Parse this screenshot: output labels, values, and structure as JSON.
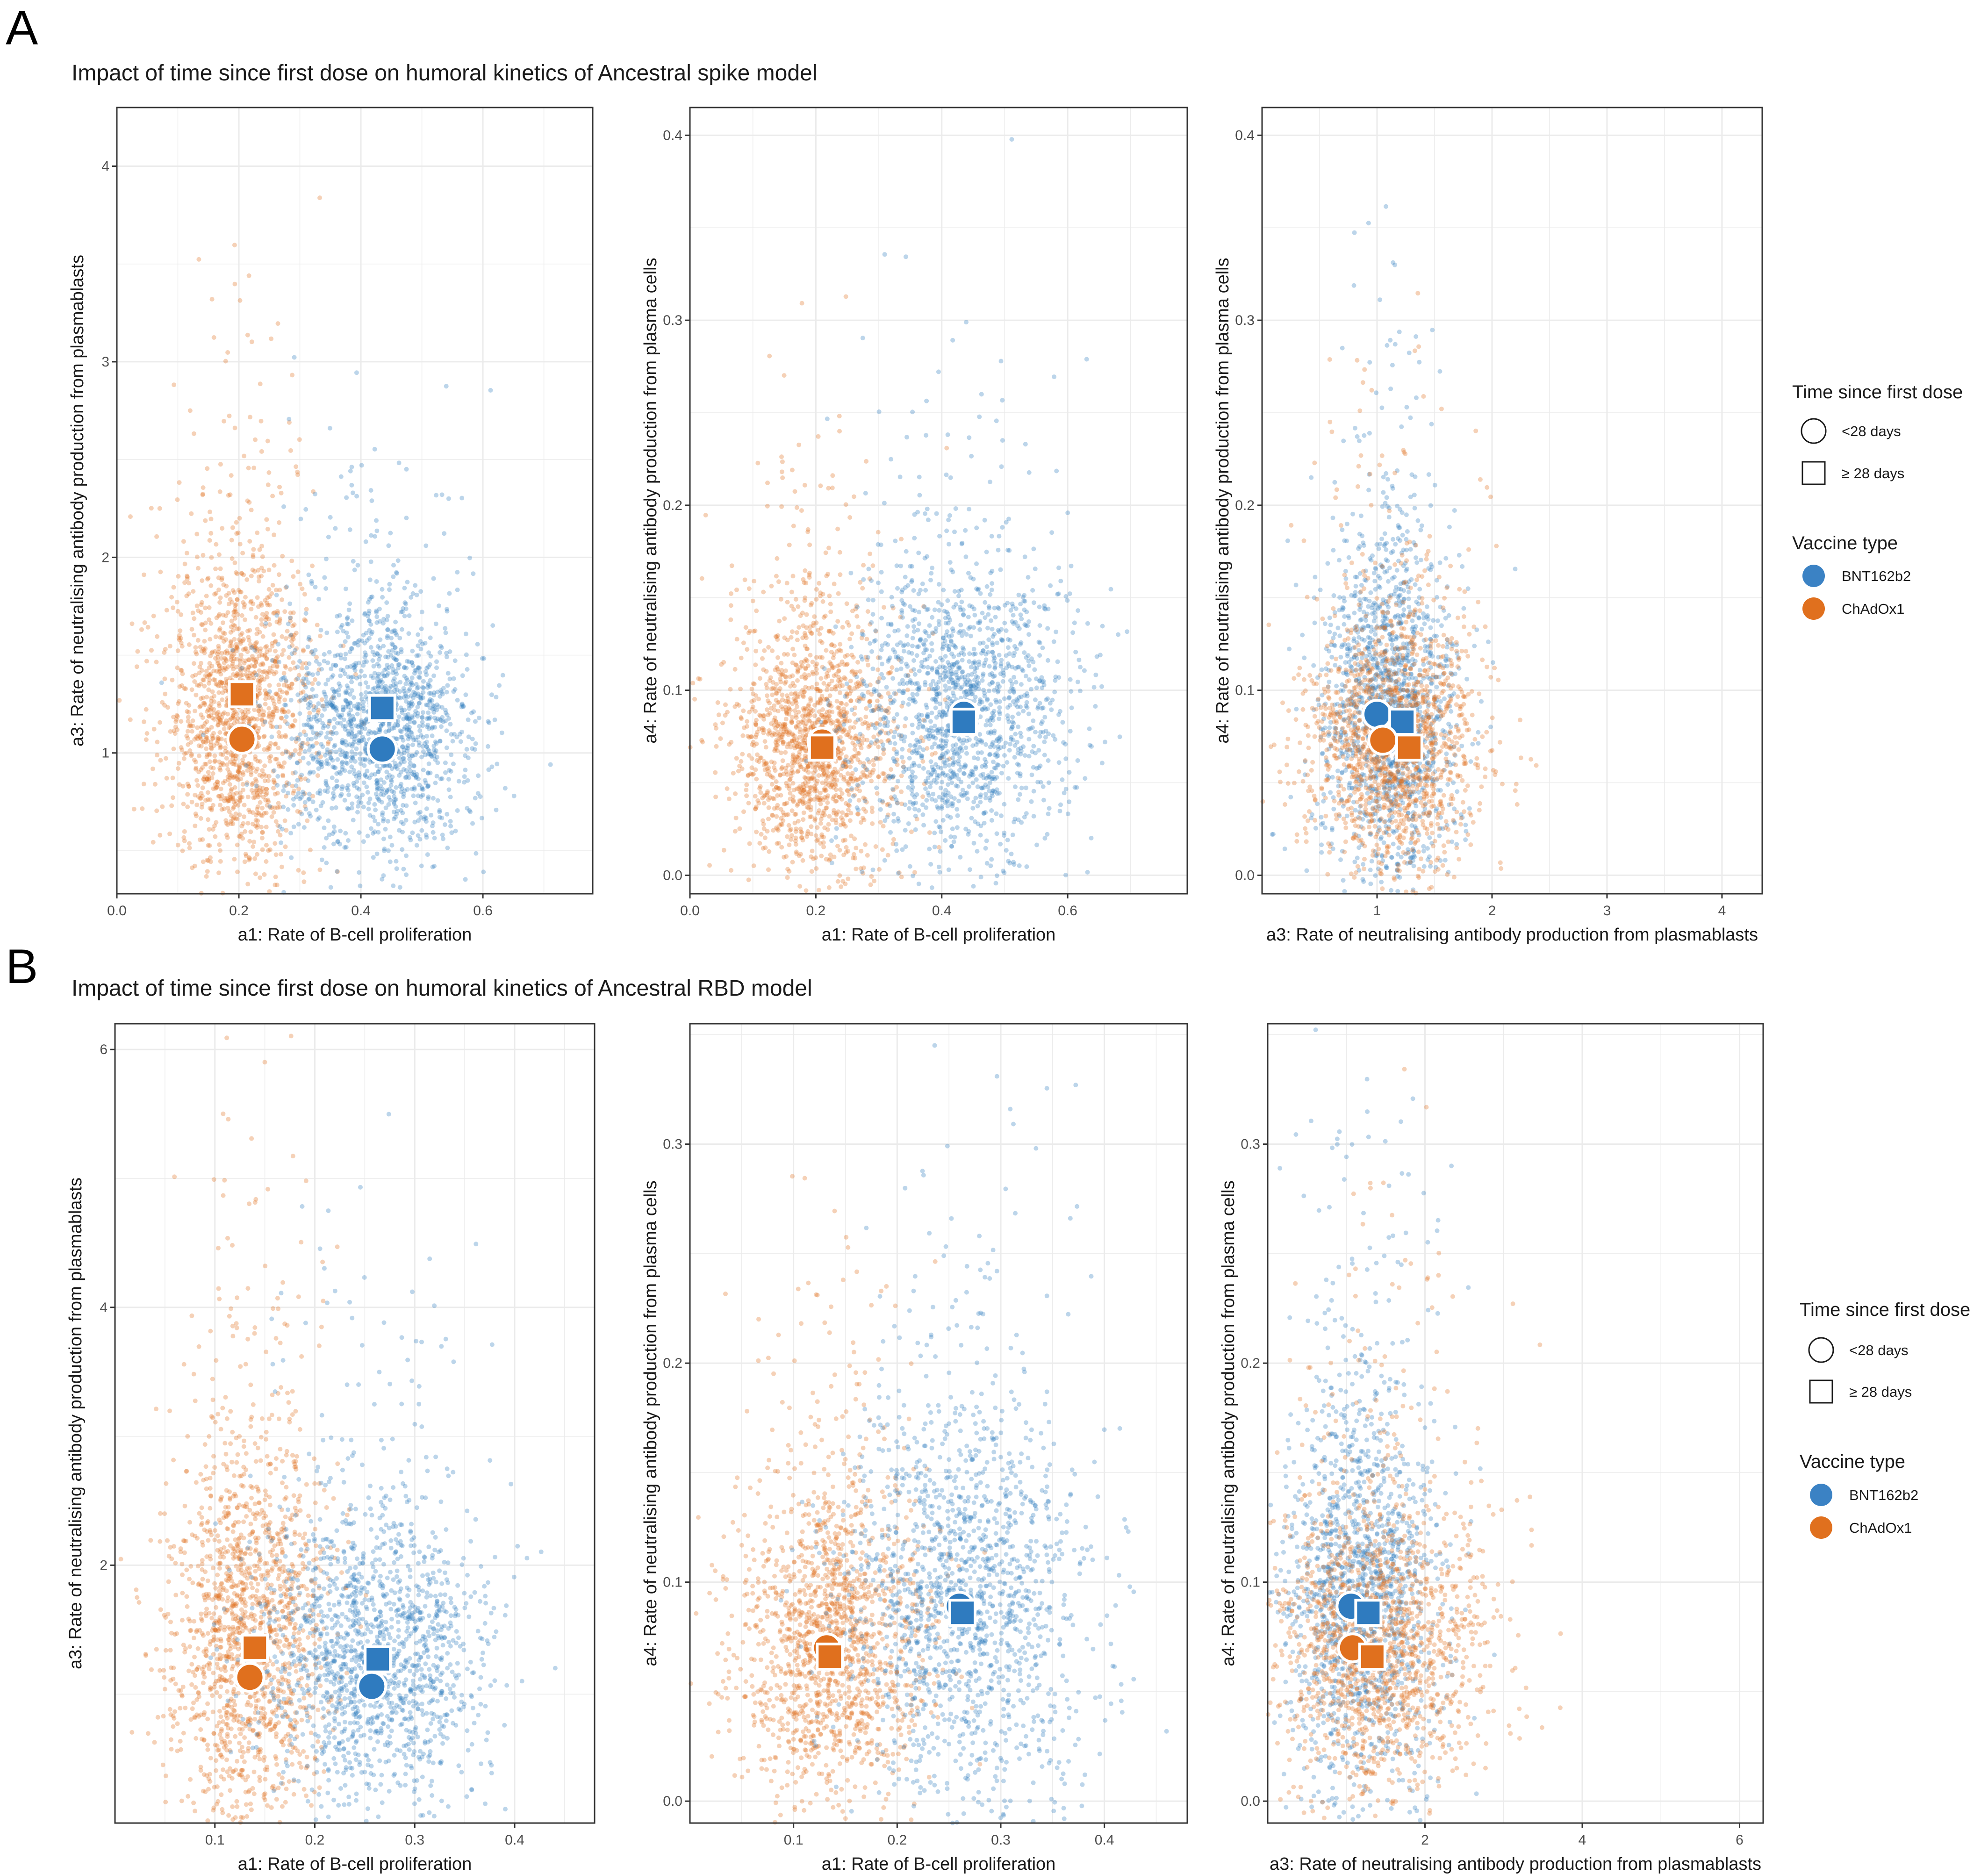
{
  "colors": {
    "BNT162b2": "#2f7bbf",
    "ChAdOx1": "#e0701e",
    "grid": "#ebebeb",
    "frame": "#333333"
  },
  "sections": [
    {
      "letter": "A",
      "title": "Impact of time since first dose on humoral kinetics of Ancestral spike model"
    },
    {
      "letter": "B",
      "title": "Impact of time since first dose on humoral kinetics of Ancestral RBD model"
    }
  ],
  "legend": {
    "time_title": "Time since first dose",
    "time_items": [
      {
        "label": "<28 days",
        "shape": "circle"
      },
      {
        "label": "≥ 28 days",
        "shape": "square"
      }
    ],
    "vaccine_title": "Vaccine type",
    "vaccine_items": [
      {
        "label": "BNT162b2",
        "color": "#3b82c4"
      },
      {
        "label": "ChAdOx1",
        "color": "#e0701e"
      }
    ]
  },
  "chart_data": [
    {
      "type": "scatter",
      "section": "A",
      "xlabel": "a1: Rate of B-cell proliferation",
      "ylabel": "a3: Rate of neutralising antibody production from plasmablasts",
      "xlim": [
        0.0,
        0.78
      ],
      "ylim": [
        0.28,
        4.3
      ],
      "xticks": [
        0.0,
        0.2,
        0.4,
        0.6
      ],
      "xtick_labels": [
        "0.0",
        "0.2",
        "0.4",
        "0.6"
      ],
      "yticks": [
        1,
        2,
        3,
        4
      ],
      "ytick_labels": [
        "1",
        "2",
        "3",
        "4"
      ],
      "clouds": [
        {
          "vaccine": "ChAdOx1",
          "cx": 0.2,
          "cy": 1.15,
          "sx": 0.06,
          "sy": 0.38,
          "n": 1500
        },
        {
          "vaccine": "BNT162b2",
          "cx": 0.43,
          "cy": 1.1,
          "sx": 0.08,
          "sy": 0.3,
          "n": 1500
        }
      ],
      "summary": [
        {
          "vaccine": "ChAdOx1",
          "time": "<28 days",
          "x": 0.205,
          "y": 1.07
        },
        {
          "vaccine": "ChAdOx1",
          "time": "≥ 28 days",
          "x": 0.205,
          "y": 1.3
        },
        {
          "vaccine": "BNT162b2",
          "time": "<28 days",
          "x": 0.435,
          "y": 1.02
        },
        {
          "vaccine": "BNT162b2",
          "time": "≥ 28 days",
          "x": 0.435,
          "y": 1.23
        }
      ]
    },
    {
      "type": "scatter",
      "section": "A",
      "xlabel": "a1: Rate of B-cell proliferation",
      "ylabel": "a4: Rate of neutralising antibody production from plasma cells",
      "xlim": [
        0.0,
        0.79
      ],
      "ylim": [
        -0.01,
        0.415
      ],
      "xticks": [
        0.0,
        0.2,
        0.4,
        0.6
      ],
      "xtick_labels": [
        "0.0",
        "0.2",
        "0.4",
        "0.6"
      ],
      "yticks": [
        0.0,
        0.1,
        0.2,
        0.3,
        0.4
      ],
      "ytick_labels": [
        "0.0",
        "0.1",
        "0.2",
        "0.3",
        "0.4"
      ],
      "clouds": [
        {
          "vaccine": "ChAdOx1",
          "cx": 0.2,
          "cy": 0.068,
          "sx": 0.065,
          "sy": 0.035,
          "n": 1500
        },
        {
          "vaccine": "BNT162b2",
          "cx": 0.43,
          "cy": 0.085,
          "sx": 0.085,
          "sy": 0.04,
          "n": 1500
        }
      ],
      "summary": [
        {
          "vaccine": "ChAdOx1",
          "time": "<28 days",
          "x": 0.21,
          "y": 0.072
        },
        {
          "vaccine": "ChAdOx1",
          "time": "≥ 28 days",
          "x": 0.21,
          "y": 0.069
        },
        {
          "vaccine": "BNT162b2",
          "time": "<28 days",
          "x": 0.435,
          "y": 0.087
        },
        {
          "vaccine": "BNT162b2",
          "time": "≥ 28 days",
          "x": 0.435,
          "y": 0.083
        }
      ]
    },
    {
      "type": "scatter",
      "section": "A",
      "xlabel": "a3: Rate of neutralising antibody production from plasmablasts",
      "ylabel": "a4: Rate of neutralising antibody production from plasma cells",
      "xlim": [
        0.0,
        4.35
      ],
      "ylim": [
        -0.01,
        0.415
      ],
      "xticks": [
        1,
        2,
        3,
        4
      ],
      "xtick_labels": [
        "1",
        "2",
        "3",
        "4"
      ],
      "yticks": [
        0.0,
        0.1,
        0.2,
        0.3,
        0.4
      ],
      "ytick_labels": [
        "0.0",
        "0.1",
        "0.2",
        "0.3",
        "0.4"
      ],
      "clouds": [
        {
          "vaccine": "BNT162b2",
          "cx": 1.1,
          "cy": 0.085,
          "sx": 0.3,
          "sy": 0.045,
          "n": 1500
        },
        {
          "vaccine": "ChAdOx1",
          "cx": 1.15,
          "cy": 0.07,
          "sx": 0.38,
          "sy": 0.035,
          "n": 1500
        }
      ],
      "summary": [
        {
          "vaccine": "BNT162b2",
          "time": "<28 days",
          "x": 1.0,
          "y": 0.087
        },
        {
          "vaccine": "BNT162b2",
          "time": "≥ 28 days",
          "x": 1.22,
          "y": 0.083
        },
        {
          "vaccine": "ChAdOx1",
          "time": "<28 days",
          "x": 1.05,
          "y": 0.073
        },
        {
          "vaccine": "ChAdOx1",
          "time": "≥ 28 days",
          "x": 1.28,
          "y": 0.069
        }
      ]
    },
    {
      "type": "scatter",
      "section": "B",
      "xlabel": "a1: Rate of B-cell proliferation",
      "ylabel": "a3: Rate of neutralising antibody production from plasmablasts",
      "xlim": [
        0.0,
        0.48
      ],
      "ylim": [
        0.0,
        6.2
      ],
      "xticks": [
        0.1,
        0.2,
        0.3,
        0.4
      ],
      "xtick_labels": [
        "0.1",
        "0.2",
        "0.3",
        "0.4"
      ],
      "yticks": [
        2,
        4,
        6
      ],
      "ytick_labels": [
        "2",
        "4",
        "6"
      ],
      "clouds": [
        {
          "vaccine": "ChAdOx1",
          "cx": 0.135,
          "cy": 1.4,
          "sx": 0.04,
          "sy": 0.75,
          "n": 1500
        },
        {
          "vaccine": "BNT162b2",
          "cx": 0.26,
          "cy": 1.25,
          "sx": 0.055,
          "sy": 0.55,
          "n": 1500
        }
      ],
      "summary": [
        {
          "vaccine": "ChAdOx1",
          "time": "<28 days",
          "x": 0.135,
          "y": 1.13
        },
        {
          "vaccine": "ChAdOx1",
          "time": "≥ 28 days",
          "x": 0.14,
          "y": 1.36
        },
        {
          "vaccine": "BNT162b2",
          "time": "<28 days",
          "x": 0.257,
          "y": 1.06
        },
        {
          "vaccine": "BNT162b2",
          "time": "≥ 28 days",
          "x": 0.263,
          "y": 1.27
        }
      ]
    },
    {
      "type": "scatter",
      "section": "B",
      "xlabel": "a1: Rate of B-cell proliferation",
      "ylabel": "a4: Rate of neutralising antibody production from plasma cells",
      "xlim": [
        0.0,
        0.48
      ],
      "ylim": [
        -0.01,
        0.355
      ],
      "xticks": [
        0.1,
        0.2,
        0.3,
        0.4
      ],
      "xtick_labels": [
        "0.1",
        "0.2",
        "0.3",
        "0.4"
      ],
      "yticks": [
        0.0,
        0.1,
        0.2,
        0.3
      ],
      "ytick_labels": [
        "0.0",
        "0.1",
        "0.2",
        "0.3"
      ],
      "clouds": [
        {
          "vaccine": "ChAdOx1",
          "cx": 0.135,
          "cy": 0.068,
          "sx": 0.045,
          "sy": 0.035,
          "n": 1500
        },
        {
          "vaccine": "BNT162b2",
          "cx": 0.265,
          "cy": 0.088,
          "sx": 0.06,
          "sy": 0.045,
          "n": 1500
        }
      ],
      "summary": [
        {
          "vaccine": "ChAdOx1",
          "time": "<28 days",
          "x": 0.132,
          "y": 0.07
        },
        {
          "vaccine": "ChAdOx1",
          "time": "≥ 28 days",
          "x": 0.135,
          "y": 0.066
        },
        {
          "vaccine": "BNT162b2",
          "time": "<28 days",
          "x": 0.26,
          "y": 0.089
        },
        {
          "vaccine": "BNT162b2",
          "time": "≥ 28 days",
          "x": 0.263,
          "y": 0.086
        }
      ]
    },
    {
      "type": "scatter",
      "section": "B",
      "xlabel": "a3: Rate of neutralising antibody production from plasmablasts",
      "ylabel": "a4: Rate of neutralising antibody production from plasma cells",
      "xlim": [
        0.0,
        6.3
      ],
      "ylim": [
        -0.01,
        0.355
      ],
      "xticks": [
        2,
        4,
        6
      ],
      "xtick_labels": [
        "2",
        "4",
        "6"
      ],
      "yticks": [
        0.0,
        0.1,
        0.2,
        0.3
      ],
      "ytick_labels": [
        "0.0",
        "0.1",
        "0.2",
        "0.3"
      ],
      "clouds": [
        {
          "vaccine": "BNT162b2",
          "cx": 1.2,
          "cy": 0.09,
          "sx": 0.5,
          "sy": 0.045,
          "n": 1500
        },
        {
          "vaccine": "ChAdOx1",
          "cx": 1.4,
          "cy": 0.068,
          "sx": 0.7,
          "sy": 0.035,
          "n": 1500
        }
      ],
      "summary": [
        {
          "vaccine": "BNT162b2",
          "time": "<28 days",
          "x": 1.06,
          "y": 0.089
        },
        {
          "vaccine": "BNT162b2",
          "time": "≥ 28 days",
          "x": 1.28,
          "y": 0.086
        },
        {
          "vaccine": "ChAdOx1",
          "time": "<28 days",
          "x": 1.08,
          "y": 0.07
        },
        {
          "vaccine": "ChAdOx1",
          "time": "≥ 28 days",
          "x": 1.33,
          "y": 0.066
        }
      ]
    }
  ]
}
